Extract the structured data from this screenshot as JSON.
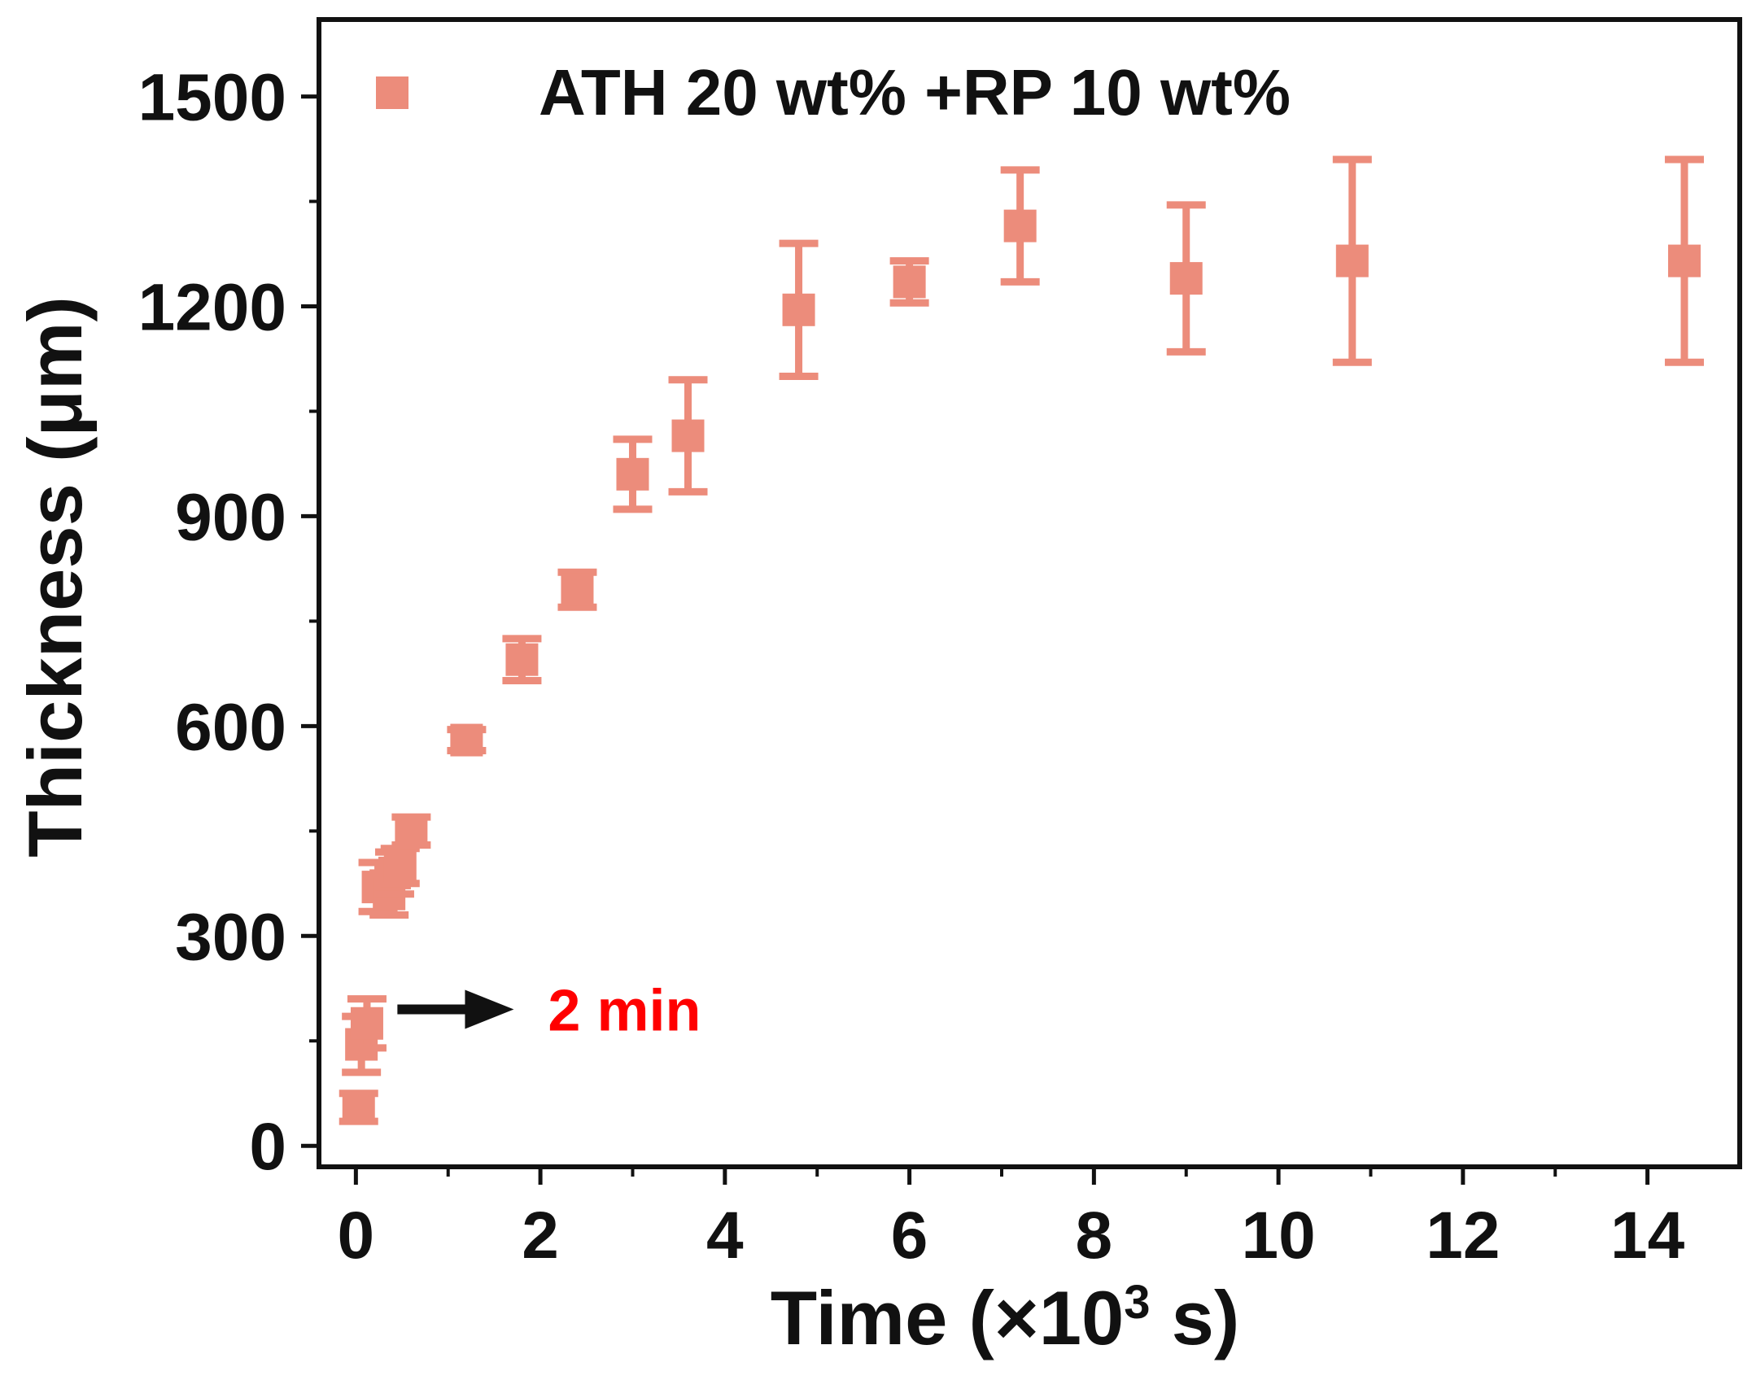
{
  "chart_data": {
    "type": "scatter",
    "title": "",
    "xlabel": "Time (×10³ s)",
    "xlabel_parts": {
      "prefix": "Time (×10",
      "sup": "3",
      "suffix": " s)"
    },
    "ylabel": "Thickness (μm)",
    "xlim": [
      -0.4,
      15.0
    ],
    "ylim": [
      -30,
      1610
    ],
    "x_ticks": [
      0,
      2,
      4,
      6,
      8,
      10,
      12,
      14
    ],
    "x_tick_labels": [
      "0",
      "2",
      "4",
      "6",
      "8",
      "10",
      "12",
      "14"
    ],
    "y_ticks": [
      0,
      300,
      600,
      900,
      1200,
      1500
    ],
    "y_tick_labels": [
      "0",
      "300",
      "600",
      "900",
      "1200",
      "1500"
    ],
    "grid": false,
    "legend_position": "top",
    "series": [
      {
        "name": "ATH 20 wt% +RP 10 wt%",
        "color": "#ec8c7b",
        "marker": "square",
        "points": [
          {
            "x": 0.03,
            "y": 55,
            "err": 20
          },
          {
            "x": 0.06,
            "y": 145,
            "err": 40
          },
          {
            "x": 0.12,
            "y": 175,
            "err": 35
          },
          {
            "x": 0.24,
            "y": 370,
            "err": 35
          },
          {
            "x": 0.36,
            "y": 360,
            "err": 30
          },
          {
            "x": 0.42,
            "y": 390,
            "err": 30
          },
          {
            "x": 0.48,
            "y": 400,
            "err": 25
          },
          {
            "x": 0.6,
            "y": 450,
            "err": 20
          },
          {
            "x": 1.2,
            "y": 580,
            "err": 15
          },
          {
            "x": 1.8,
            "y": 695,
            "err": 30
          },
          {
            "x": 2.4,
            "y": 795,
            "err": 25
          },
          {
            "x": 3.0,
            "y": 960,
            "err": 50
          },
          {
            "x": 3.6,
            "y": 1015,
            "err": 80
          },
          {
            "x": 4.8,
            "y": 1195,
            "err": 95
          },
          {
            "x": 6.0,
            "y": 1235,
            "err": 30
          },
          {
            "x": 7.2,
            "y": 1315,
            "err": 80
          },
          {
            "x": 9.0,
            "y": 1240,
            "err": 105
          },
          {
            "x": 10.8,
            "y": 1265,
            "err": 145
          },
          {
            "x": 14.4,
            "y": 1265,
            "err": 145
          }
        ]
      }
    ],
    "annotations": [
      {
        "text": "2 min",
        "color": "#ff0000",
        "arrow_from": {
          "x": 0.45,
          "y": 195
        },
        "arrow_to": {
          "x": 1.8,
          "y": 195
        }
      }
    ]
  }
}
